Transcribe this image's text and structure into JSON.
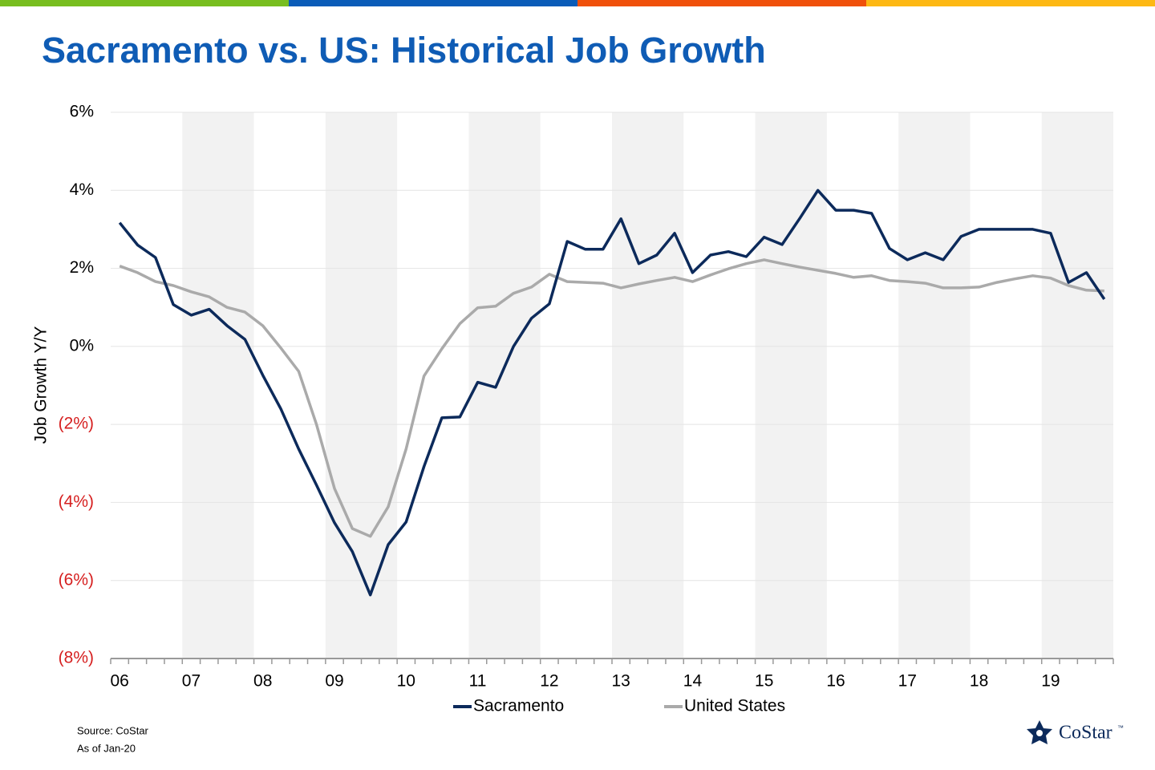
{
  "chart_data": {
    "type": "line",
    "title": "Sacramento vs. US: Historical Job Growth",
    "y_label": "Job Growth Y/Y",
    "source": "Source: CoStar",
    "note": "As of Jan-20",
    "logo": "CoStar",
    "logo_mark": "™",
    "categories": [
      "06",
      null,
      null,
      null,
      "07",
      null,
      null,
      null,
      "08",
      null,
      null,
      null,
      "09",
      null,
      null,
      null,
      "10",
      null,
      null,
      null,
      "11",
      null,
      null,
      null,
      "12",
      null,
      null,
      null,
      "13",
      null,
      null,
      null,
      "14",
      null,
      null,
      null,
      "15",
      null,
      null,
      null,
      "16",
      null,
      null,
      null,
      "17",
      null,
      null,
      null,
      "18",
      null,
      null,
      null,
      "19",
      null,
      null,
      null
    ],
    "series": [
      {
        "name": "Sacramento",
        "color": "#0c2a5b",
        "values": [
          3.17,
          2.6,
          2.28,
          1.07,
          0.8,
          0.95,
          0.53,
          0.18,
          -0.74,
          -1.6,
          -2.63,
          -3.56,
          -4.52,
          -5.26,
          -6.37,
          -5.08,
          -4.5,
          -3.08,
          -1.83,
          -1.81,
          -0.92,
          -1.05,
          0,
          0.72,
          1.09,
          2.69,
          2.49,
          2.49,
          3.27,
          2.12,
          2.34,
          2.9,
          1.89,
          2.34,
          2.43,
          2.3,
          2.8,
          2.61,
          3.29,
          4.0,
          3.49,
          3.49,
          3.41,
          2.51,
          2.22,
          2.4,
          2.22,
          2.82,
          3.0,
          3.0,
          3.0,
          3.0,
          2.9,
          1.64,
          1.89,
          1.21
        ]
      },
      {
        "name": "United States",
        "color": "#aaaaaa",
        "values": [
          2.06,
          1.89,
          1.66,
          1.56,
          1.4,
          1.27,
          1.0,
          0.88,
          0.53,
          -0.04,
          -0.64,
          -2.01,
          -3.64,
          -4.67,
          -4.87,
          -4.11,
          -2.63,
          -0.76,
          -0.06,
          0.58,
          0.99,
          1.03,
          1.36,
          1.52,
          1.85,
          1.66,
          1.64,
          1.62,
          1.5,
          1.6,
          1.69,
          1.77,
          1.66,
          1.83,
          1.99,
          2.12,
          2.22,
          2.12,
          2.03,
          1.95,
          1.87,
          1.77,
          1.81,
          1.69,
          1.66,
          1.62,
          1.5,
          1.5,
          1.52,
          1.64,
          1.73,
          1.81,
          1.75,
          1.56,
          1.44,
          1.42
        ]
      }
    ],
    "ylim": [
      -8,
      6
    ],
    "yticks": [
      {
        "value": -8,
        "label": "(8%)"
      },
      {
        "value": -6,
        "label": "(6%)"
      },
      {
        "value": -4,
        "label": "(4%)"
      },
      {
        "value": -2,
        "label": "(2%)"
      },
      {
        "value": 0,
        "label": "0%"
      },
      {
        "value": 2,
        "label": "2%"
      },
      {
        "value": 4,
        "label": "4%"
      },
      {
        "value": 6,
        "label": "6%"
      }
    ],
    "grid": true,
    "legend": "bottom"
  }
}
